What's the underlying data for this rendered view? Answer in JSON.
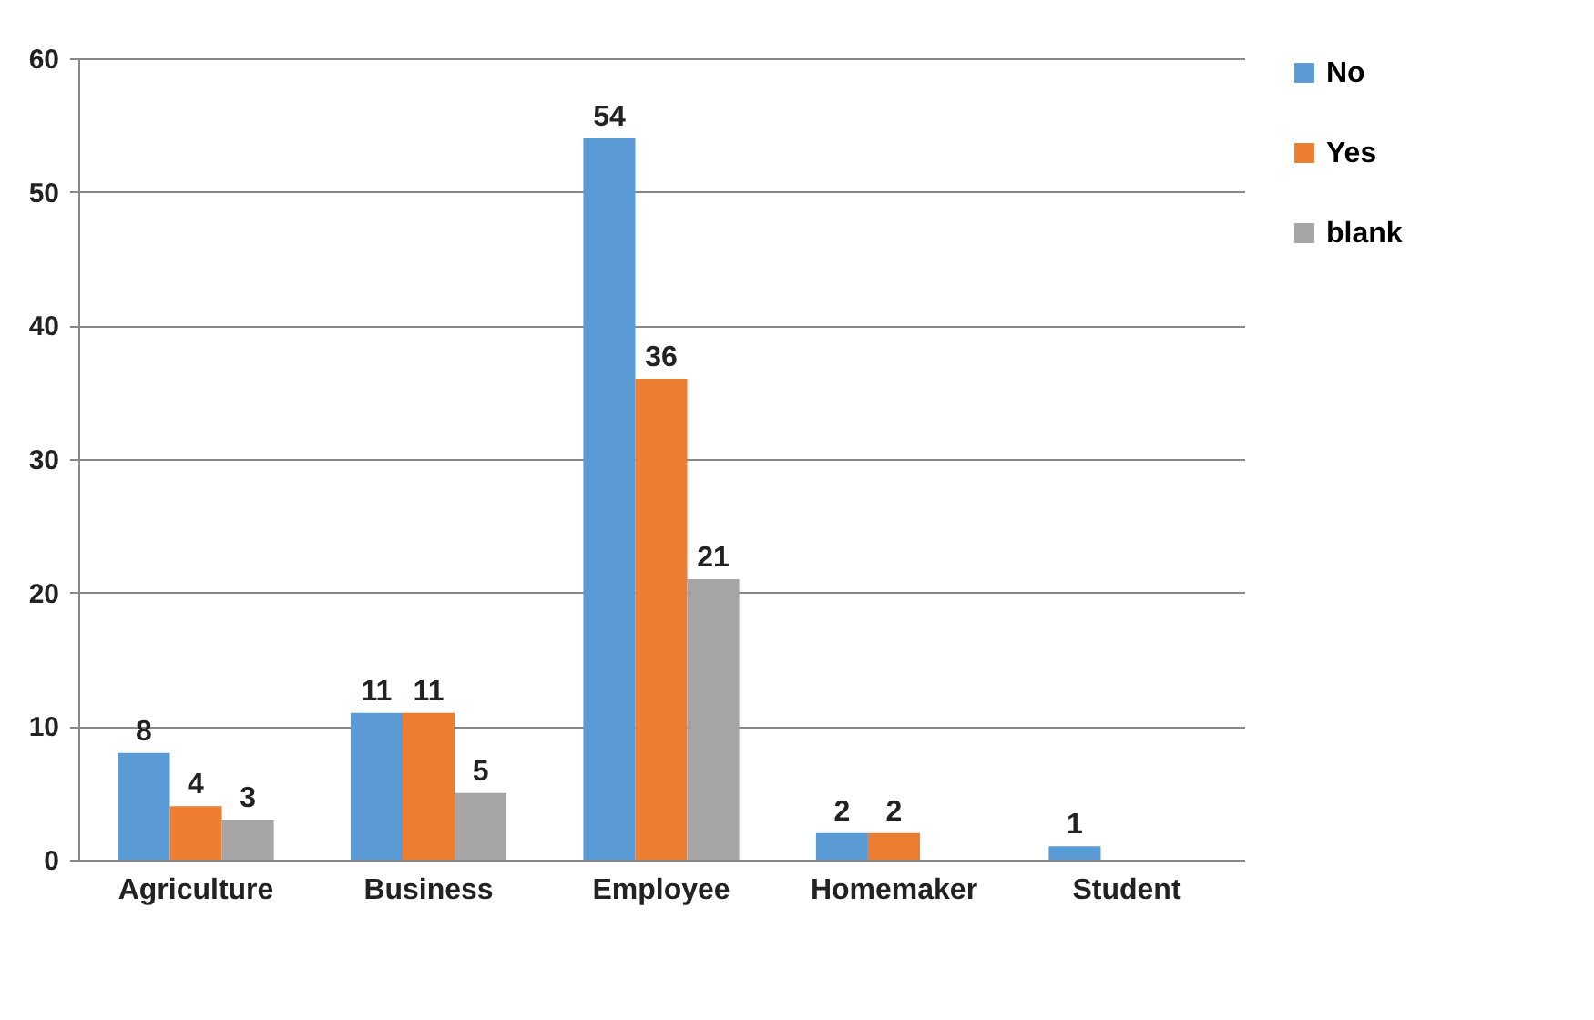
{
  "chart_data": {
    "type": "bar",
    "categories": [
      "Agriculture",
      "Business",
      "Employee",
      "Homemaker",
      "Student"
    ],
    "series": [
      {
        "name": "No",
        "color": "#5b9bd5",
        "values": [
          8,
          11,
          54,
          2,
          1
        ]
      },
      {
        "name": "Yes",
        "color": "#ed7d31",
        "values": [
          4,
          11,
          36,
          2,
          null
        ]
      },
      {
        "name": "blank",
        "color": "#a5a5a5",
        "values": [
          3,
          5,
          21,
          null,
          null
        ]
      }
    ],
    "ylim": [
      0,
      60
    ],
    "yticks": [
      0,
      10,
      20,
      30,
      40,
      50,
      60
    ],
    "grid": "y",
    "legend": "right",
    "data_labels": true
  }
}
